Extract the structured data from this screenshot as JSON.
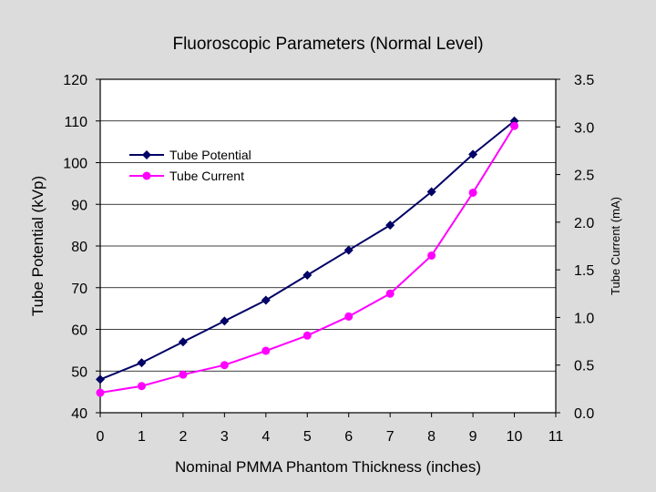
{
  "chart_data": {
    "type": "line",
    "title": "Fluoroscopic Parameters (Normal Level)",
    "xlabel": "Nominal PMMA Phantom Thickness (inches)",
    "ylabel": "Tube Potential (kVp)",
    "y2label": "Tube Current (mA)",
    "xlim": [
      0,
      11
    ],
    "ylim": [
      40,
      120
    ],
    "y2lim": [
      0.0,
      3.5
    ],
    "x_ticks": [
      "0",
      "1",
      "2",
      "3",
      "4",
      "5",
      "6",
      "7",
      "8",
      "9",
      "10",
      "11"
    ],
    "y_ticks": [
      "40",
      "50",
      "60",
      "70",
      "80",
      "90",
      "100",
      "110",
      "120"
    ],
    "y2_ticks": [
      "0.0",
      "0.5",
      "1.0",
      "1.5",
      "2.0",
      "2.5",
      "3.0",
      "3.5"
    ],
    "grid": "horizontal",
    "legend_position": "top-left",
    "x": [
      0,
      1,
      2,
      3,
      4,
      5,
      6,
      7,
      8,
      9,
      10
    ],
    "series": [
      {
        "name": "Tube Potential",
        "axis": "left",
        "marker": "diamond",
        "color": "#000066",
        "values": [
          48,
          52,
          57,
          62,
          67,
          73,
          79,
          85,
          93,
          102,
          110
        ]
      },
      {
        "name": "Tube Current",
        "axis": "right",
        "marker": "circle",
        "color": "#ff00ff",
        "values": [
          0.21,
          0.28,
          0.4,
          0.5,
          0.65,
          0.81,
          1.01,
          1.25,
          1.65,
          2.31,
          3.01
        ]
      }
    ]
  }
}
